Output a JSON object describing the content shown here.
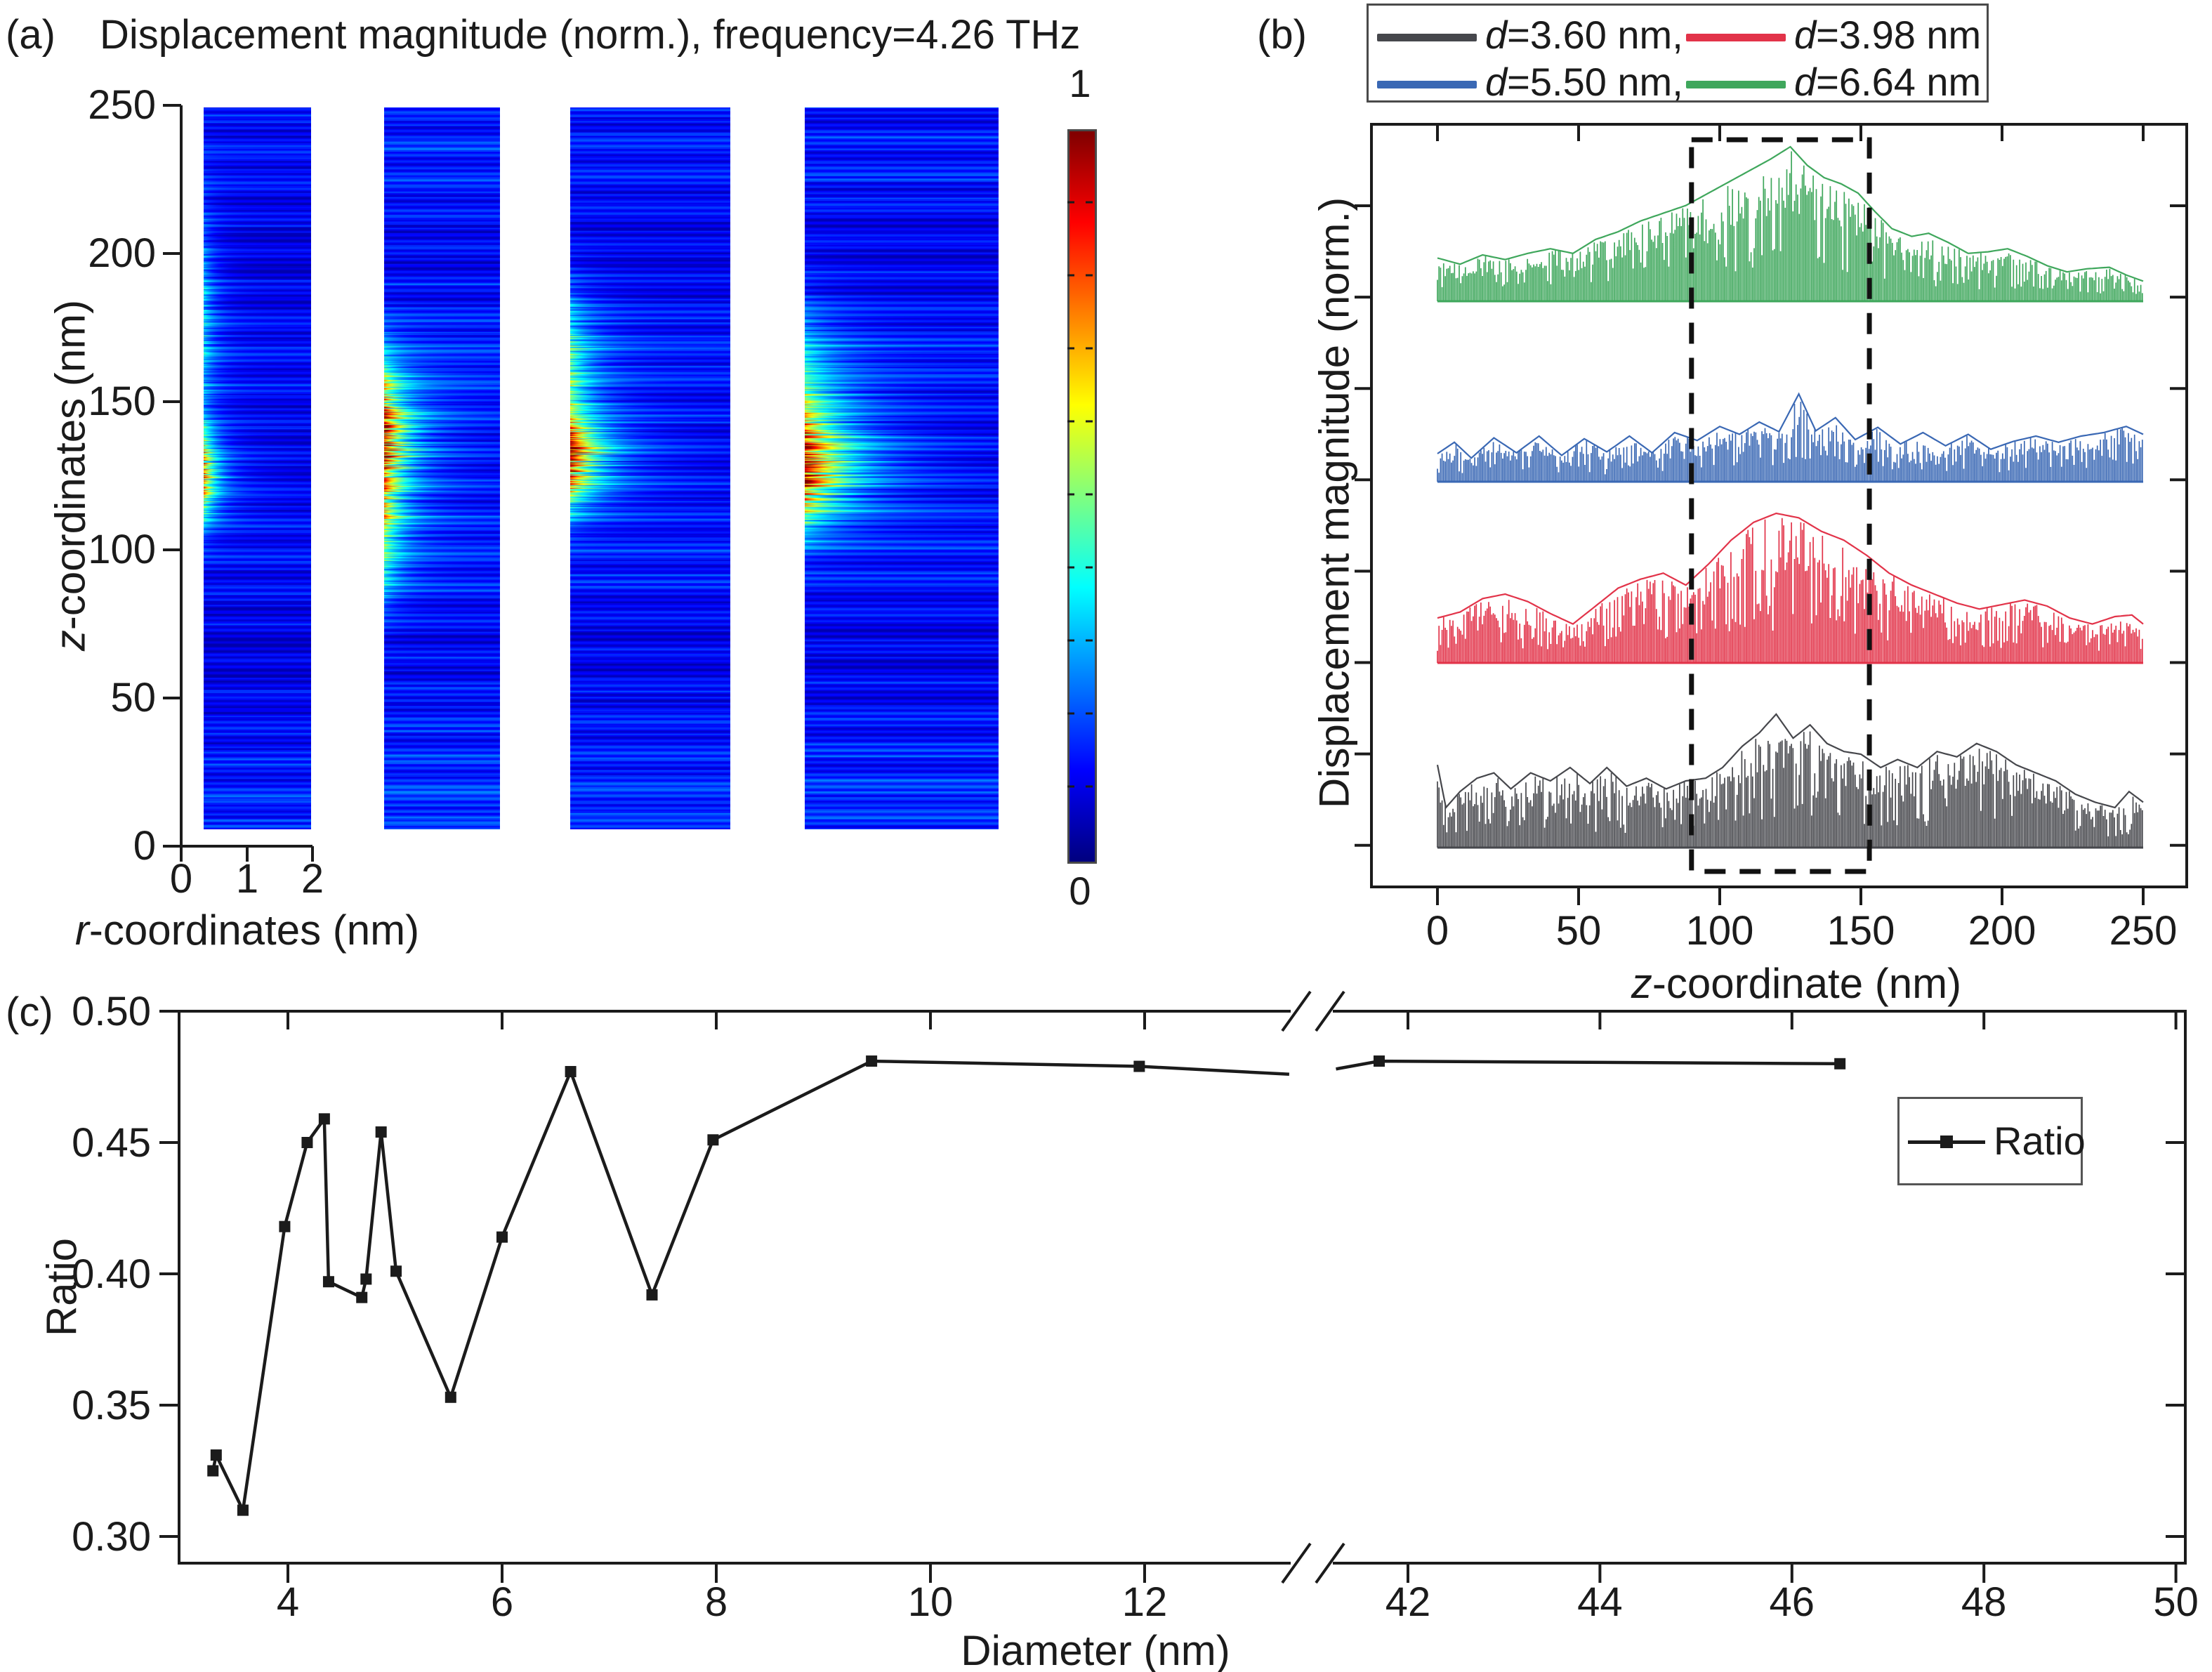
{
  "figure": {
    "background": "#ffffff",
    "text_color": "#1b1b1b"
  },
  "panel_a": {
    "label": "(a)",
    "title": "Displacement magnitude (norm.), frequency=4.26 THz",
    "y_axis": {
      "label_italic": "z",
      "label_rest": "-coordinates (nm)",
      "ticks": [
        0,
        50,
        100,
        150,
        200,
        250
      ]
    },
    "x_axis": {
      "label_italic": "r",
      "label_rest": "-coordinates (nm)",
      "ticks": [
        0,
        1,
        2
      ]
    },
    "colorbar": {
      "max_label": "1",
      "min_label": "0",
      "colormap": "jet"
    }
  },
  "panel_b": {
    "label": "(b)",
    "legend": [
      {
        "var": "d",
        "text": "=3.60 nm,",
        "color": "#46474c"
      },
      {
        "var": "d",
        "text": "=3.98 nm",
        "color": "#e23349"
      },
      {
        "var": "d",
        "text": "=5.50 nm,",
        "color": "#3a68b4"
      },
      {
        "var": "d",
        "text": "=6.64 nm",
        "color": "#3fa75c"
      }
    ],
    "y_axis": {
      "label": "Displacement magnitude (norm.)"
    },
    "x_axis": {
      "label_italic": "z",
      "label_rest": "-coordinate (nm)",
      "ticks": [
        0,
        50,
        100,
        150,
        200,
        250
      ]
    }
  },
  "panel_c": {
    "label": "(c)",
    "y_axis": {
      "label": "Ratio",
      "ticks": [
        "0.50",
        "0.45",
        "0.40",
        "0.35",
        "0.30"
      ]
    },
    "x_axis": {
      "label": "Diameter (nm)",
      "ticks_left": [
        4,
        6,
        8,
        10,
        12
      ],
      "ticks_right": [
        42,
        44,
        46,
        48,
        50
      ]
    },
    "legend": {
      "label": "Ratio"
    }
  },
  "chart_data": [
    {
      "panel": "a",
      "type": "heatmap",
      "title": "Displacement magnitude (norm.), frequency=4.26 THz",
      "xlabel": "r-coordinates (nm)",
      "ylabel": "z-coordinates (nm)",
      "x_ticks": [
        0,
        1,
        2
      ],
      "y_ticks": [
        0,
        50,
        100,
        150,
        200,
        250
      ],
      "z_extent_nm": [
        5,
        249
      ],
      "colorbar": {
        "colormap": "jet",
        "min": 0,
        "max": 1
      },
      "strips": [
        {
          "background_level": 0.105,
          "hotspot": {
            "z_center_nm": 125,
            "z_sigma_nm": 11,
            "peak_value": 0.8,
            "radial_decay": 6.0
          },
          "secondary": {
            "z_center_nm": 178,
            "z_sigma_nm": 26,
            "peak_value": 0.33
          }
        },
        {
          "background_level": 0.13,
          "hotspot": {
            "z_center_nm": 137,
            "z_sigma_nm": 17,
            "peak_value": 1.05,
            "radial_decay": 4.5
          },
          "secondary": {
            "z_center_nm": 102,
            "z_sigma_nm": 14,
            "peak_value": 0.45
          }
        },
        {
          "background_level": 0.12,
          "hotspot": {
            "z_center_nm": 130,
            "z_sigma_nm": 11,
            "peak_value": 1.0,
            "radial_decay": 5.0
          },
          "secondary": {
            "z_center_nm": 160,
            "z_sigma_nm": 18,
            "peak_value": 0.5
          }
        },
        {
          "background_level": 0.12,
          "hotspot": {
            "z_center_nm": 127,
            "z_sigma_nm": 13,
            "peak_value": 1.0,
            "radial_decay": 4.0
          },
          "secondary": {
            "z_center_nm": 152,
            "z_sigma_nm": 20,
            "peak_value": 0.4
          }
        }
      ]
    },
    {
      "panel": "b",
      "type": "line",
      "xlabel": "z-coordinate (nm)",
      "ylabel": "Displacement magnitude (norm.)",
      "xlim": [
        0,
        250
      ],
      "x_ticks": [
        0,
        50,
        100,
        150,
        200,
        250
      ],
      "highlight_box_z_nm": [
        90,
        153
      ],
      "series": [
        {
          "name": "d=6.64 nm",
          "color": "#3fa75c",
          "stack_row": 0,
          "envelope": [
            [
              0,
              0.28
            ],
            [
              8,
              0.24
            ],
            [
              16,
              0.3
            ],
            [
              24,
              0.27
            ],
            [
              32,
              0.31
            ],
            [
              40,
              0.34
            ],
            [
              48,
              0.31
            ],
            [
              56,
              0.4
            ],
            [
              64,
              0.45
            ],
            [
              72,
              0.52
            ],
            [
              80,
              0.57
            ],
            [
              88,
              0.62
            ],
            [
              96,
              0.7
            ],
            [
              104,
              0.78
            ],
            [
              112,
              0.86
            ],
            [
              118,
              0.92
            ],
            [
              125,
              1.0
            ],
            [
              131,
              0.88
            ],
            [
              137,
              0.8
            ],
            [
              143,
              0.76
            ],
            [
              149,
              0.7
            ],
            [
              155,
              0.58
            ],
            [
              161,
              0.47
            ],
            [
              168,
              0.42
            ],
            [
              174,
              0.44
            ],
            [
              181,
              0.38
            ],
            [
              188,
              0.31
            ],
            [
              195,
              0.32
            ],
            [
              202,
              0.34
            ],
            [
              209,
              0.29
            ],
            [
              216,
              0.23
            ],
            [
              223,
              0.19
            ],
            [
              230,
              0.21
            ],
            [
              238,
              0.22
            ],
            [
              244,
              0.17
            ],
            [
              250,
              0.13
            ]
          ]
        },
        {
          "name": "d=5.50 nm",
          "color": "#3a68b4",
          "stack_row": 1,
          "envelope": [
            [
              0,
              0.32
            ],
            [
              6,
              0.45
            ],
            [
              12,
              0.27
            ],
            [
              20,
              0.5
            ],
            [
              28,
              0.33
            ],
            [
              36,
              0.52
            ],
            [
              44,
              0.3
            ],
            [
              52,
              0.49
            ],
            [
              60,
              0.34
            ],
            [
              68,
              0.52
            ],
            [
              76,
              0.33
            ],
            [
              84,
              0.56
            ],
            [
              92,
              0.47
            ],
            [
              100,
              0.63
            ],
            [
              107,
              0.54
            ],
            [
              114,
              0.68
            ],
            [
              121,
              0.57
            ],
            [
              128,
              1.0
            ],
            [
              134,
              0.58
            ],
            [
              141,
              0.73
            ],
            [
              148,
              0.48
            ],
            [
              156,
              0.62
            ],
            [
              164,
              0.43
            ],
            [
              172,
              0.56
            ],
            [
              180,
              0.41
            ],
            [
              188,
              0.54
            ],
            [
              196,
              0.37
            ],
            [
              204,
              0.46
            ],
            [
              212,
              0.52
            ],
            [
              220,
              0.45
            ],
            [
              228,
              0.52
            ],
            [
              236,
              0.56
            ],
            [
              244,
              0.63
            ],
            [
              250,
              0.54
            ]
          ]
        },
        {
          "name": "d=3.98 nm",
          "color": "#e23349",
          "stack_row": 2,
          "envelope": [
            [
              0,
              0.3
            ],
            [
              8,
              0.34
            ],
            [
              16,
              0.43
            ],
            [
              24,
              0.46
            ],
            [
              32,
              0.41
            ],
            [
              40,
              0.33
            ],
            [
              48,
              0.26
            ],
            [
              56,
              0.38
            ],
            [
              64,
              0.5
            ],
            [
              72,
              0.56
            ],
            [
              80,
              0.6
            ],
            [
              88,
              0.52
            ],
            [
              96,
              0.66
            ],
            [
              104,
              0.82
            ],
            [
              112,
              0.94
            ],
            [
              120,
              1.0
            ],
            [
              128,
              0.97
            ],
            [
              136,
              0.88
            ],
            [
              144,
              0.82
            ],
            [
              152,
              0.72
            ],
            [
              160,
              0.6
            ],
            [
              168,
              0.52
            ],
            [
              176,
              0.46
            ],
            [
              184,
              0.4
            ],
            [
              192,
              0.36
            ],
            [
              200,
              0.39
            ],
            [
              208,
              0.42
            ],
            [
              216,
              0.38
            ],
            [
              224,
              0.3
            ],
            [
              232,
              0.26
            ],
            [
              240,
              0.31
            ],
            [
              246,
              0.32
            ],
            [
              250,
              0.26
            ]
          ]
        },
        {
          "name": "d=3.60 nm",
          "color": "#46474c",
          "stack_row": 3,
          "envelope": [
            [
              0,
              0.62
            ],
            [
              3,
              0.3
            ],
            [
              8,
              0.42
            ],
            [
              14,
              0.52
            ],
            [
              20,
              0.56
            ],
            [
              26,
              0.44
            ],
            [
              33,
              0.56
            ],
            [
              40,
              0.5
            ],
            [
              47,
              0.6
            ],
            [
              54,
              0.48
            ],
            [
              60,
              0.6
            ],
            [
              67,
              0.46
            ],
            [
              74,
              0.52
            ],
            [
              81,
              0.44
            ],
            [
              88,
              0.5
            ],
            [
              95,
              0.52
            ],
            [
              101,
              0.6
            ],
            [
              108,
              0.76
            ],
            [
              114,
              0.86
            ],
            [
              120,
              1.0
            ],
            [
              126,
              0.82
            ],
            [
              132,
              0.92
            ],
            [
              138,
              0.78
            ],
            [
              144,
              0.72
            ],
            [
              150,
              0.7
            ],
            [
              157,
              0.6
            ],
            [
              163,
              0.66
            ],
            [
              170,
              0.6
            ],
            [
              177,
              0.72
            ],
            [
              184,
              0.68
            ],
            [
              191,
              0.78
            ],
            [
              198,
              0.72
            ],
            [
              205,
              0.62
            ],
            [
              212,
              0.56
            ],
            [
              219,
              0.5
            ],
            [
              226,
              0.4
            ],
            [
              233,
              0.34
            ],
            [
              240,
              0.3
            ],
            [
              245,
              0.42
            ],
            [
              250,
              0.34
            ]
          ]
        }
      ]
    },
    {
      "panel": "c",
      "type": "line",
      "xlabel": "Diameter (nm)",
      "ylabel": "Ratio",
      "ylim": [
        0.29,
        0.5
      ],
      "y_ticks": [
        0.5,
        0.45,
        0.4,
        0.35,
        0.3
      ],
      "x_ticks_left": [
        4,
        6,
        8,
        10,
        12
      ],
      "x_ticks_right": [
        42,
        44,
        46,
        48,
        50
      ],
      "axis_break_x": [
        13.35,
        41.25
      ],
      "series": [
        {
          "name": "Ratio",
          "color": "#1b1b1b",
          "marker": "square",
          "points": [
            [
              3.3,
              0.325
            ],
            [
              3.33,
              0.331
            ],
            [
              3.58,
              0.31
            ],
            [
              3.97,
              0.418
            ],
            [
              4.18,
              0.45
            ],
            [
              4.34,
              0.459
            ],
            [
              4.38,
              0.397
            ],
            [
              4.69,
              0.391
            ],
            [
              4.73,
              0.398
            ],
            [
              4.87,
              0.454
            ],
            [
              5.01,
              0.401
            ],
            [
              5.52,
              0.353
            ],
            [
              6.0,
              0.414
            ],
            [
              6.64,
              0.477
            ],
            [
              7.4,
              0.392
            ],
            [
              7.97,
              0.451
            ],
            [
              9.45,
              0.481
            ],
            [
              11.95,
              0.479
            ],
            [
              41.7,
              0.481
            ],
            [
              46.5,
              0.48
            ]
          ],
          "edge_points": {
            "left_segment_end": [
              13.35,
              0.476
            ],
            "right_segment_start": [
              41.25,
              0.478
            ]
          }
        }
      ]
    }
  ]
}
